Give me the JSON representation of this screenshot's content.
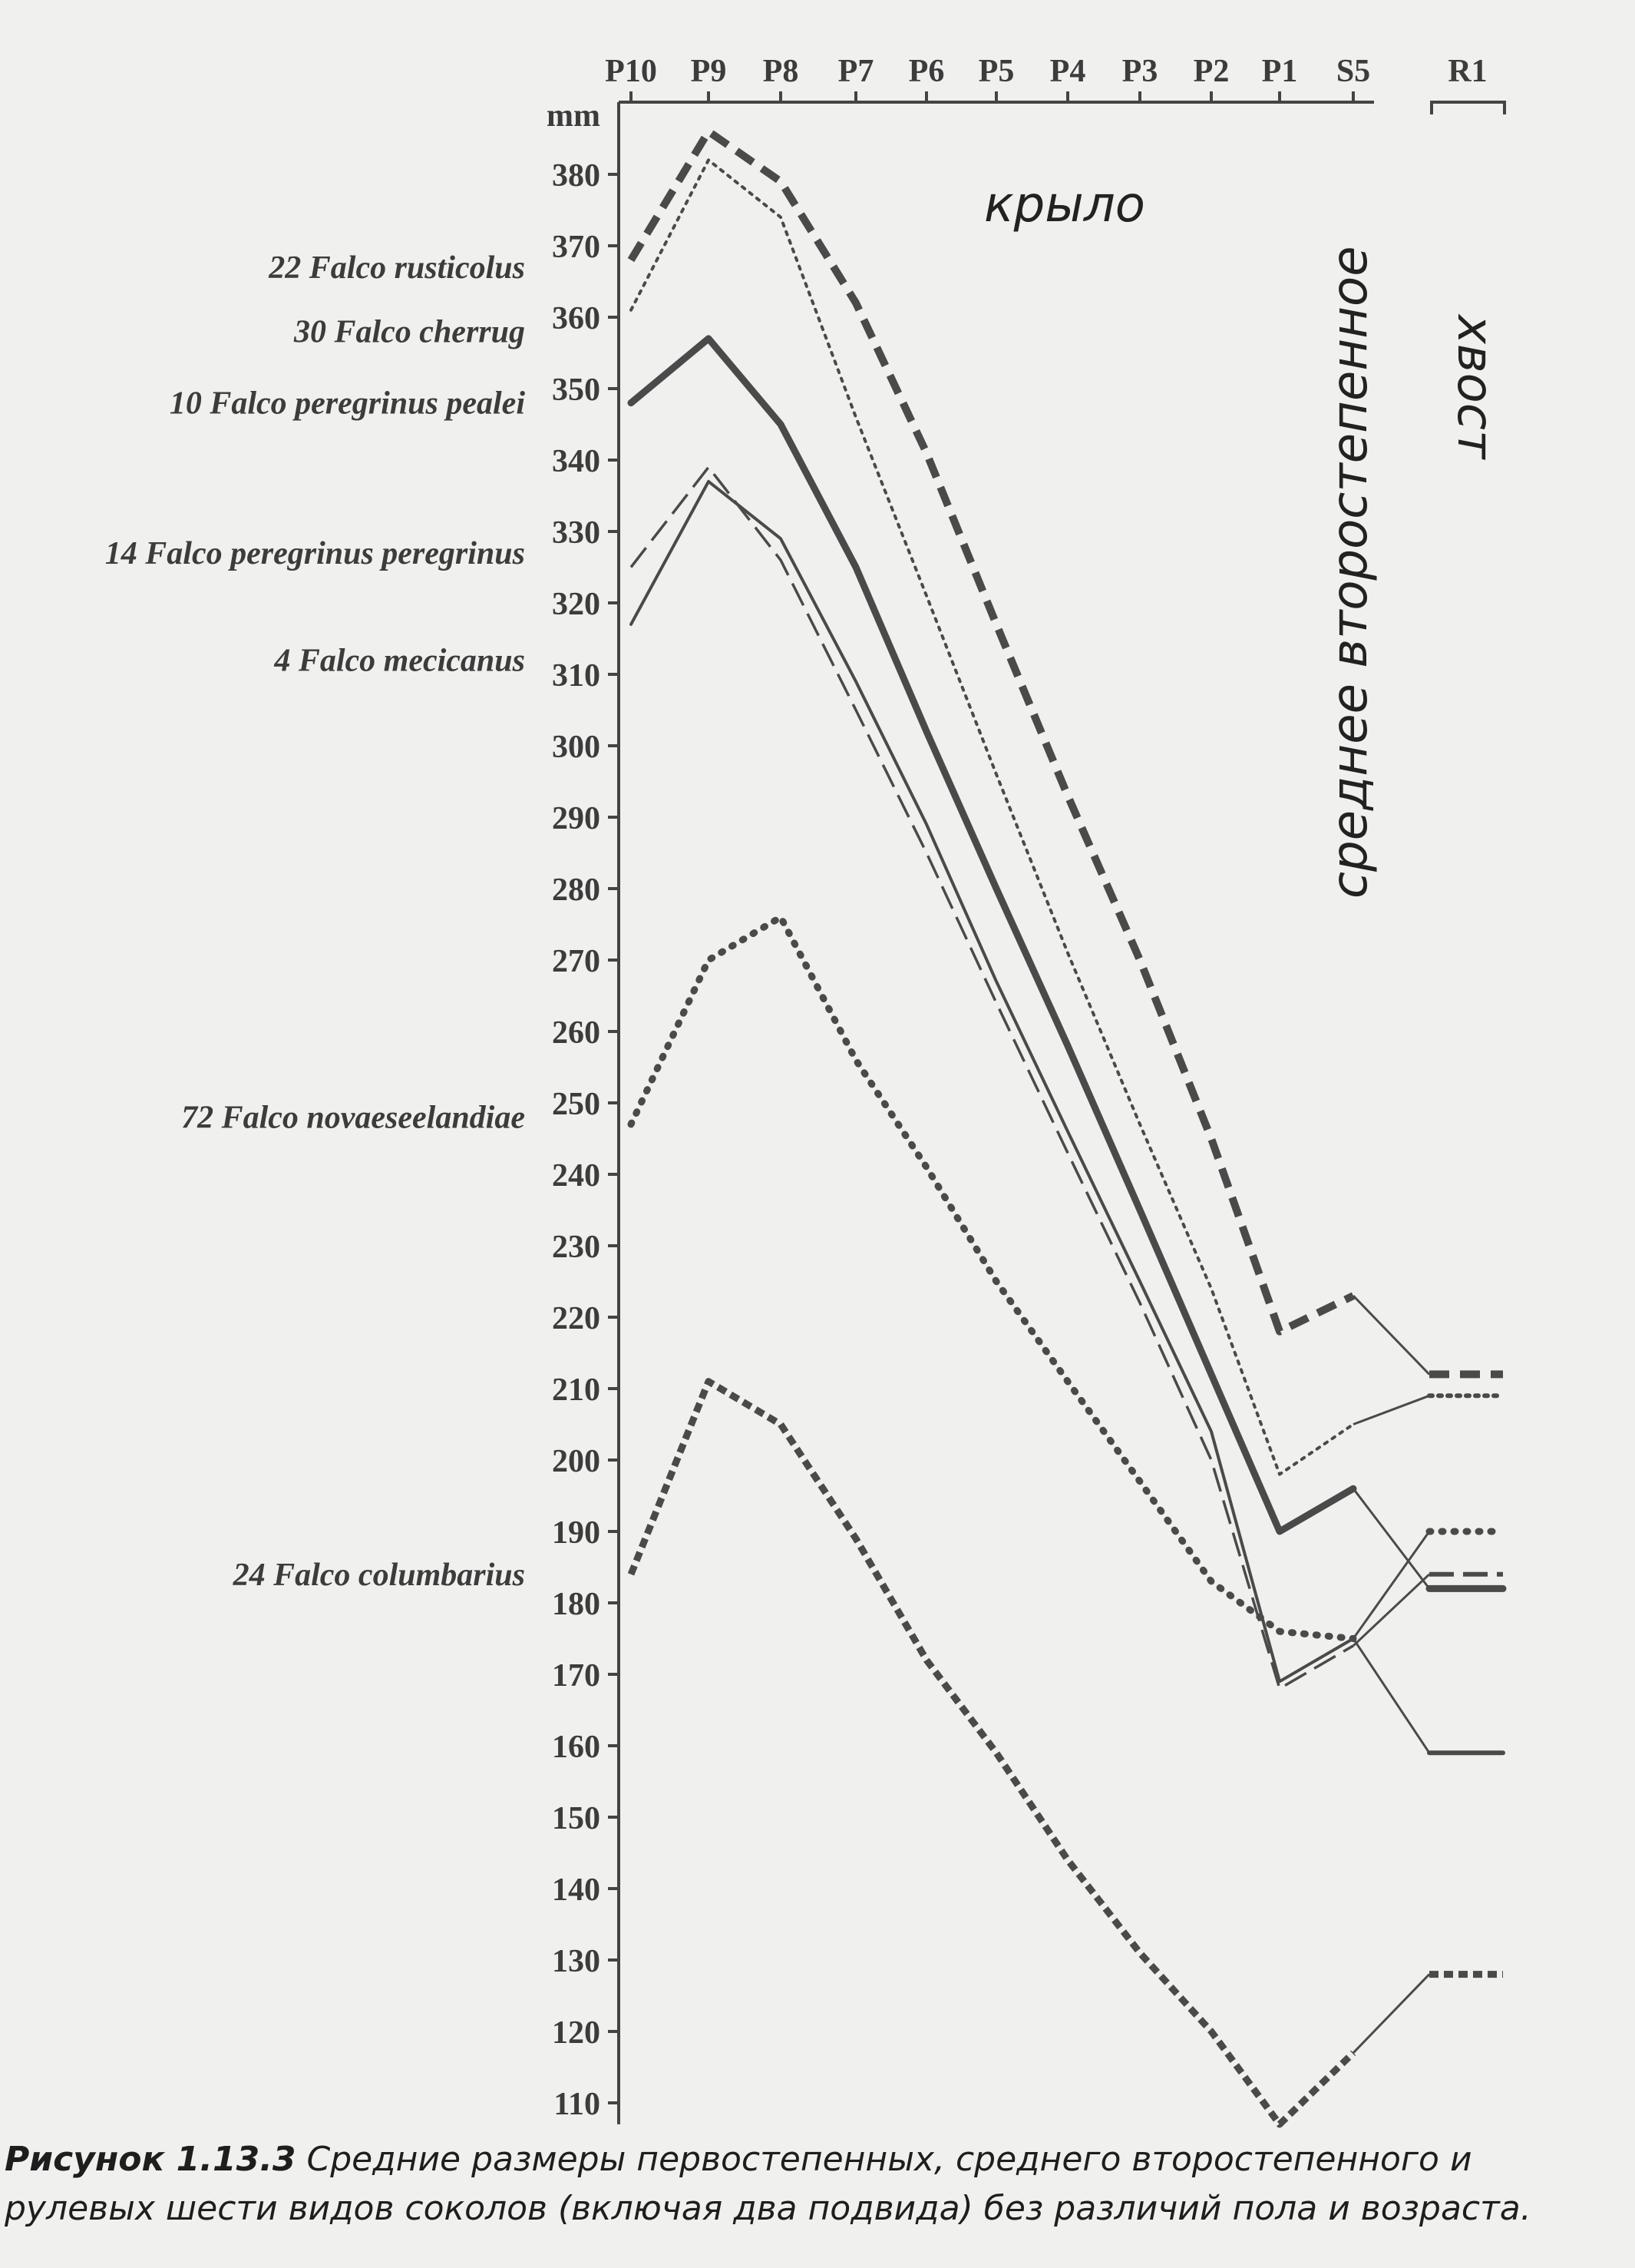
{
  "chart_data": {
    "type": "line",
    "unit_label": "mm",
    "categories": [
      "P10",
      "P9",
      "P8",
      "P7",
      "P6",
      "P5",
      "P4",
      "P3",
      "P2",
      "P1",
      "S5",
      "R1"
    ],
    "yticks": [
      110,
      120,
      130,
      140,
      150,
      160,
      170,
      180,
      190,
      200,
      210,
      220,
      230,
      240,
      250,
      260,
      270,
      280,
      290,
      300,
      310,
      320,
      330,
      340,
      350,
      360,
      370,
      380
    ],
    "ylim": [
      107,
      390
    ],
    "grid": false,
    "series": [
      {
        "name": "22 Falco rusticolus",
        "label_value": 367,
        "values": [
          368,
          386,
          379,
          362,
          341,
          317,
          293,
          270,
          245,
          218,
          223,
          212
        ],
        "style": "bold-dash"
      },
      {
        "name": "30 Falco cherrug",
        "label_value": 358,
        "values": [
          361,
          382,
          374,
          346,
          321,
          296,
          271,
          247,
          224,
          198,
          205,
          209
        ],
        "style": "dotted-thin"
      },
      {
        "name": "10 Falco peregrinus pealei",
        "label_value": 348,
        "values": [
          348,
          357,
          345,
          325,
          302,
          280,
          258,
          235,
          212,
          190,
          196,
          182
        ],
        "style": "solid-thick"
      },
      {
        "name": "14 Falco peregrinus peregrinus",
        "label_value": 327,
        "values": [
          325,
          339,
          326,
          305,
          285,
          264,
          243,
          222,
          200,
          168,
          174,
          184
        ],
        "style": "long-dash"
      },
      {
        "name": "4 Falco mecicanus",
        "label_value": 312,
        "values": [
          317,
          337,
          329,
          309,
          289,
          267,
          246,
          225,
          204,
          169,
          175,
          159
        ],
        "style": "solid-thin"
      },
      {
        "name": "72 Falco novaeseelandiae",
        "label_value": 248,
        "values": [
          247,
          270,
          276,
          256,
          241,
          225,
          211,
          197,
          183,
          176,
          175,
          190
        ],
        "style": "dotted-thick"
      },
      {
        "name": "24 Falco columbarius",
        "label_value": 184,
        "values": [
          184,
          211,
          205,
          189,
          172,
          159,
          144,
          131,
          120,
          107,
          117,
          128
        ],
        "style": "dash-thick"
      }
    ],
    "annotations": {
      "wing": "крыло",
      "secondary": "среднее второстепенное",
      "tail": "хвост"
    }
  },
  "caption": {
    "bold": "Рисунок 1.13.3",
    "text": " Средние размеры первостепенных, среднего второстепенного и рулевых шести видов соколов (включая два подвида) без различий пола и возраста."
  }
}
